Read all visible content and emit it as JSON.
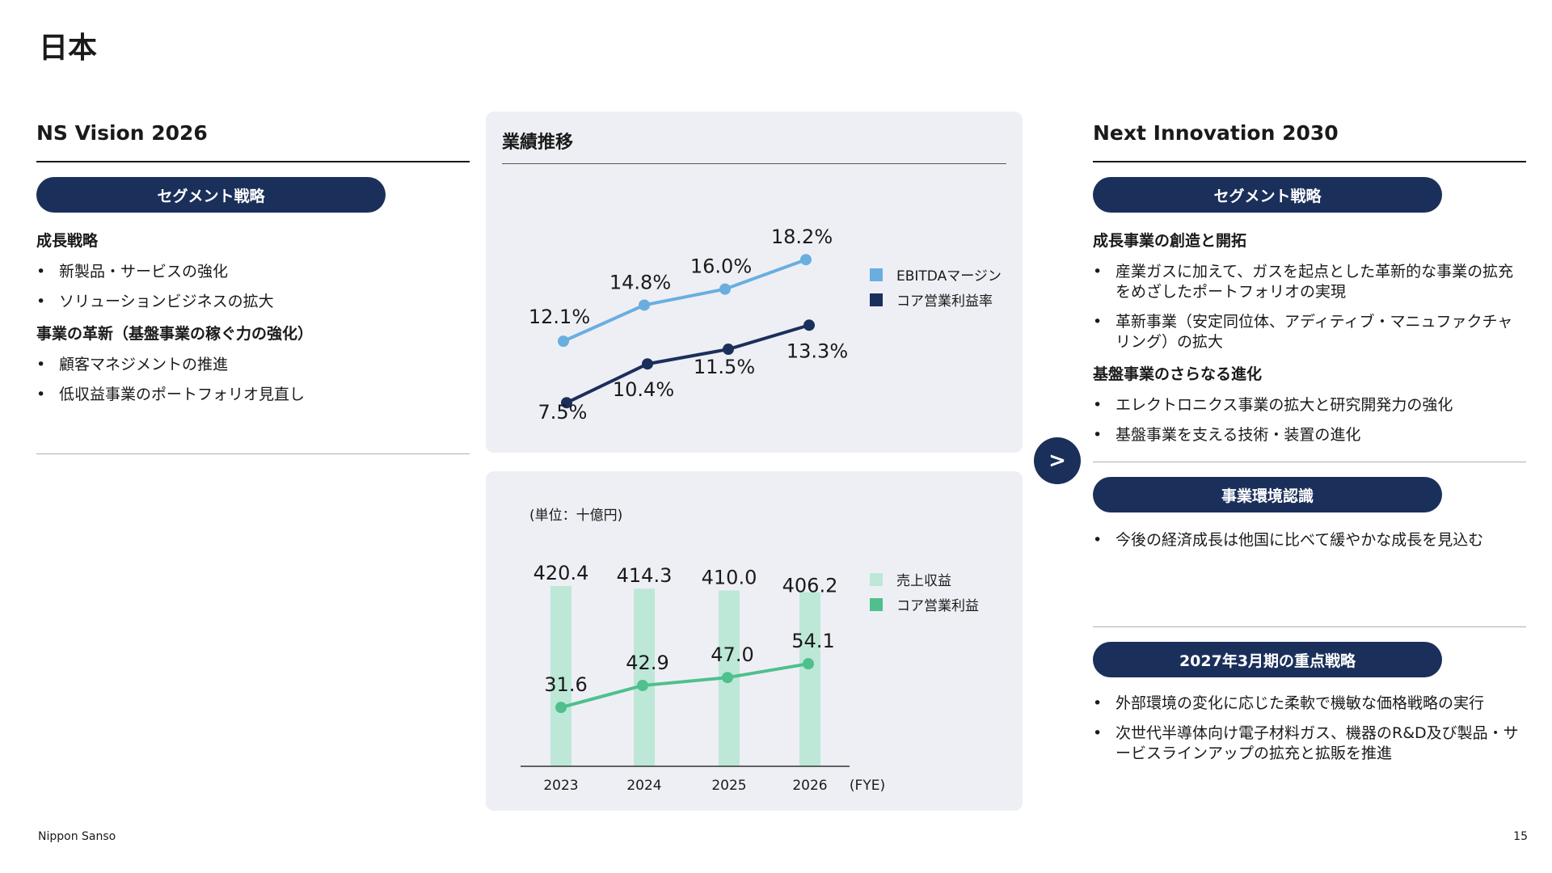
{
  "page_title": "日本",
  "left": {
    "heading": "NS Vision 2026",
    "pill": "セグメント戦略",
    "sections": [
      {
        "title": "成長戦略",
        "items": [
          "新製品・サービスの強化",
          "ソリューションビジネスの拡大"
        ]
      },
      {
        "title": "事業の革新（基盤事業の稼ぐ力の強化）",
        "items": [
          "顧客マネジメントの推進",
          "低収益事業のポートフォリオ見直し"
        ]
      }
    ]
  },
  "right": {
    "heading": "Next Innovation 2030",
    "pill1": "セグメント戦略",
    "sections": [
      {
        "title": "成長事業の創造と開拓",
        "items": [
          "産業ガスに加えて、ガスを起点とした革新的な事業の拡充をめざしたポートフォリオの実現",
          "革新事業（安定同位体、アディティブ・マニュファクチャリング）の拡大"
        ]
      },
      {
        "title": "基盤事業のさらなる進化",
        "items": [
          "エレクトロニクス事業の拡大と研究開発力の強化",
          "基盤事業を支える技術・装置の進化"
        ]
      }
    ],
    "pill2": "事業環境認識",
    "env_items": [
      "今後の経済成長は他国に比べて緩やかな成長を見込む"
    ],
    "pill3": "2027年3月期の重点戦略",
    "focus_items": [
      "外部環境の変化に応じた柔軟で機敏な価格戦略の実行",
      "次世代半導体向け電子材料ガス、機器のR&D及び製品・サービスラインアップの拡充と拡販を推進"
    ]
  },
  "panel_title": "業績推移",
  "arrow": ">",
  "footer": {
    "company": "Nippon Sanso",
    "page": "15"
  },
  "chart_data": [
    {
      "type": "line",
      "x": [
        "2023",
        "2024",
        "2025",
        "2026"
      ],
      "series": [
        {
          "name": "EBITDAマージン",
          "values": [
            12.1,
            14.8,
            16.0,
            18.2
          ],
          "labels": [
            "12.1%",
            "14.8%",
            "16.0%",
            "18.2%"
          ],
          "color": "#6aaee0"
        },
        {
          "name": "コア営業利益率",
          "values": [
            7.5,
            10.4,
            11.5,
            13.3
          ],
          "labels": [
            "7.5%",
            "10.4%",
            "11.5%",
            "13.3%"
          ],
          "color": "#1b2f5b"
        }
      ],
      "ylim": [
        6,
        19
      ],
      "legend": "right"
    },
    {
      "type": "bar",
      "unit_label": "(単位：十億円)",
      "categories": [
        "2023",
        "2024",
        "2025",
        "2026"
      ],
      "x_suffix": "(FYE)",
      "series": [
        {
          "name": "売上収益",
          "kind": "bar",
          "values": [
            420.4,
            414.3,
            410.0,
            406.2
          ],
          "labels": [
            "420.4",
            "414.3",
            "410.0",
            "406.2"
          ],
          "color": "#bde8d7"
        },
        {
          "name": "コア営業利益",
          "kind": "line",
          "values": [
            31.6,
            42.9,
            47.0,
            54.1
          ],
          "labels": [
            "31.6",
            "42.9",
            "47.0",
            "54.1"
          ],
          "color": "#4fc08d"
        }
      ],
      "ylim": [
        0,
        450
      ],
      "legend": "right"
    }
  ]
}
